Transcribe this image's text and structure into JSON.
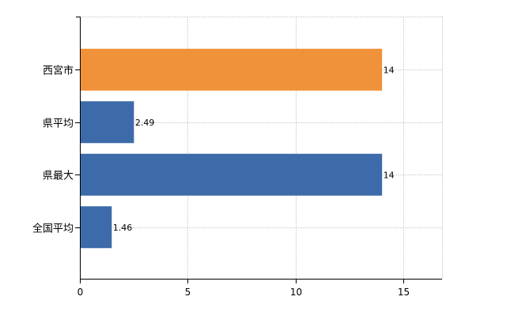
{
  "chart_data": {
    "type": "bar",
    "orientation": "horizontal",
    "categories": [
      "西宮市",
      "県平均",
      "県最大",
      "全国平均"
    ],
    "values": [
      14,
      2.49,
      14,
      1.46
    ],
    "value_labels": [
      "14",
      "2.49",
      "14",
      "1.46"
    ],
    "bar_colors": [
      "#f0923a",
      "#3d6ba9",
      "#3d6ba9",
      "#3d6ba9"
    ],
    "xlim": [
      0,
      16.8
    ],
    "x_ticks": [
      0,
      5,
      10,
      15
    ],
    "x_tick_labels": [
      "0",
      "5",
      "10",
      "15"
    ],
    "grid": true,
    "title": "",
    "xlabel": "",
    "ylabel": ""
  }
}
